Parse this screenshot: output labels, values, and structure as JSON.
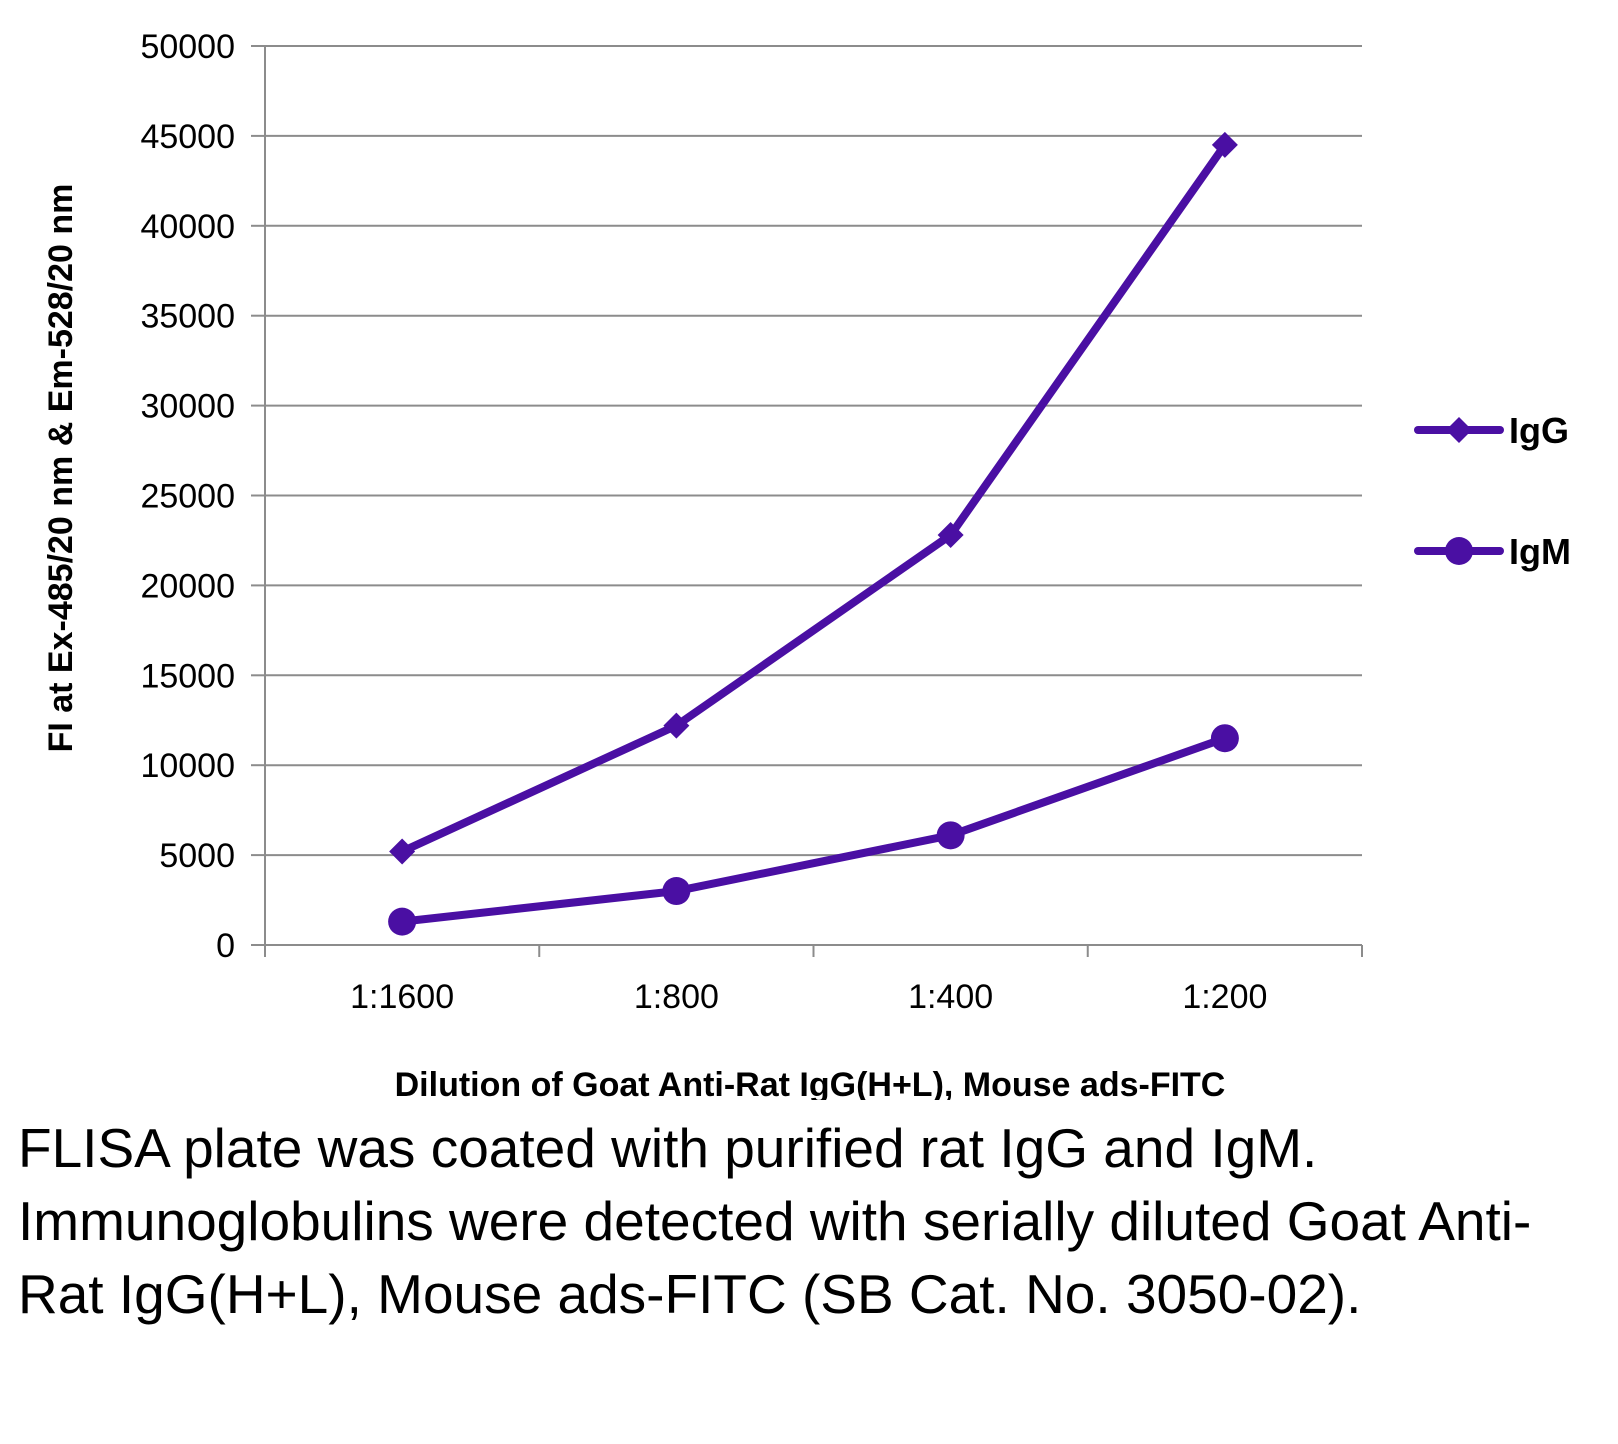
{
  "chart_data": {
    "type": "line",
    "categories": [
      "1:1600",
      "1:800",
      "1:400",
      "1:200"
    ],
    "series": [
      {
        "name": "IgG",
        "values": [
          5200,
          12200,
          22800,
          44500
        ],
        "marker": "diamond"
      },
      {
        "name": "IgM",
        "values": [
          1300,
          3000,
          6100,
          11500
        ],
        "marker": "circle"
      }
    ],
    "xlabel": "Dilution of Goat Anti-Rat IgG(H+L), Mouse ads-FITC",
    "ylabel": "FI at Ex-485/20 nm & Em-528/20 nm",
    "ylim": [
      0,
      50000
    ],
    "yticks": [
      0,
      5000,
      10000,
      15000,
      20000,
      25000,
      30000,
      35000,
      40000,
      45000,
      50000
    ],
    "grid": true,
    "legend": "right",
    "line_color": "#4a0fa3",
    "grid_color": "#8c8c8c"
  },
  "caption": "FLISA plate was coated with purified rat IgG and IgM.  Immunoglobulins were detected with serially diluted Goat Anti-Rat IgG(H+L), Mouse ads-FITC (SB Cat. No. 3050-02)."
}
